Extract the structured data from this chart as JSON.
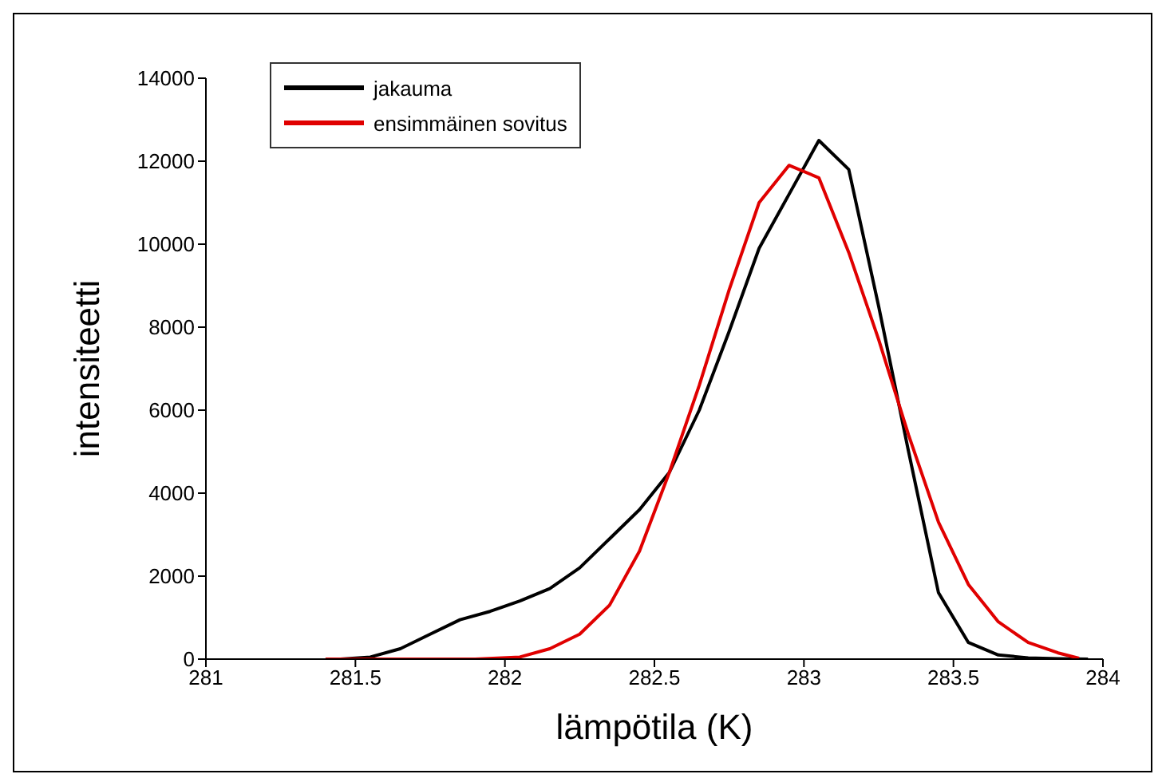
{
  "chart_data": {
    "type": "line",
    "xlabel": "lämpötila (K)",
    "ylabel": "intensiteetti",
    "xlim": [
      281,
      284
    ],
    "xticks": [
      281,
      281.5,
      282,
      282.5,
      283,
      283.5,
      284
    ],
    "ylim": [
      0,
      14000
    ],
    "yticks": [
      0,
      2000,
      4000,
      6000,
      8000,
      10000,
      12000,
      14000
    ],
    "legend": "top left",
    "grid": false,
    "marker": "none",
    "line_style": "solid",
    "series": [
      {
        "name": "jakauma",
        "color": "#000000",
        "x": [
          281.45,
          281.55,
          281.65,
          281.75,
          281.85,
          281.95,
          282.05,
          282.15,
          282.25,
          282.35,
          282.45,
          282.55,
          282.65,
          282.75,
          282.85,
          282.95,
          283.05,
          283.15,
          283.25,
          283.35,
          283.45,
          283.55,
          283.65,
          283.75,
          283.85,
          283.95
        ],
        "values": [
          0,
          50,
          250,
          600,
          950,
          1150,
          1400,
          1700,
          2200,
          2900,
          3600,
          4500,
          6000,
          7900,
          9900,
          11200,
          12500,
          11800,
          8500,
          5000,
          1600,
          400,
          100,
          30,
          10,
          0
        ]
      },
      {
        "name": "ensimmäinen sovitus",
        "color": "#e00000",
        "x": [
          281.4,
          281.9,
          282.05,
          282.15,
          282.25,
          282.35,
          282.45,
          282.55,
          282.65,
          282.75,
          282.85,
          282.95,
          283.05,
          283.15,
          283.25,
          283.35,
          283.45,
          283.55,
          283.65,
          283.75,
          283.85,
          283.92
        ],
        "values": [
          0,
          0,
          50,
          250,
          600,
          1300,
          2600,
          4500,
          6600,
          8900,
          11000,
          11900,
          11600,
          9800,
          7700,
          5400,
          3300,
          1800,
          900,
          400,
          150,
          20
        ]
      }
    ]
  }
}
